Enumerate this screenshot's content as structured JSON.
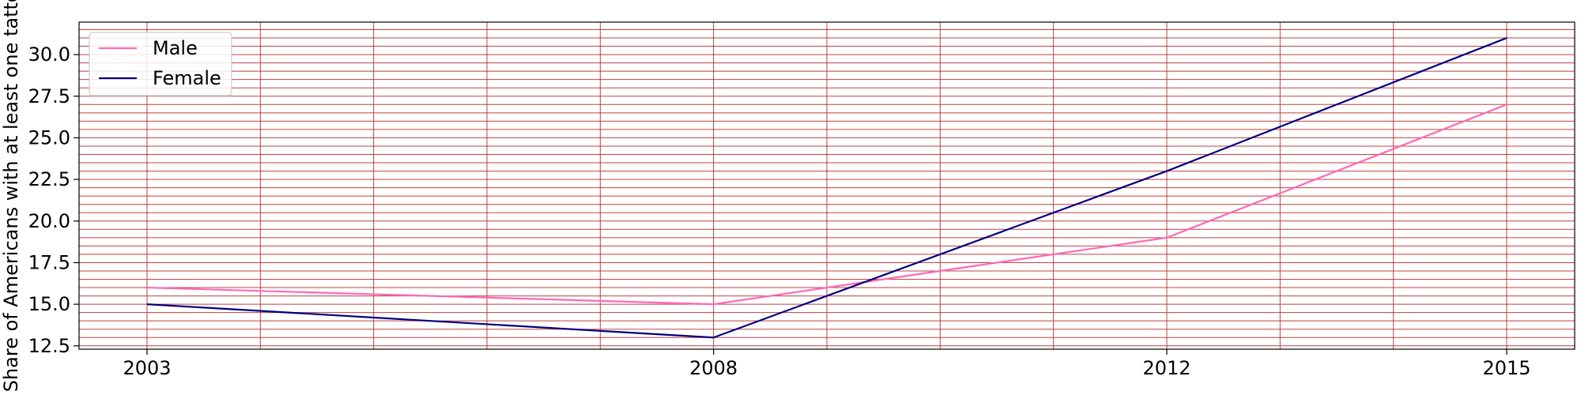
{
  "chart_data": {
    "type": "line",
    "title": "",
    "xlabel": "",
    "ylabel": "Share of Americans with at least one tattoo",
    "x": [
      2003,
      2008,
      2012,
      2015
    ],
    "xlim": [
      2002.4,
      2015.6
    ],
    "ylim": [
      12.3,
      31.95
    ],
    "yticks": [
      12.5,
      15.0,
      17.5,
      20.0,
      22.5,
      25.0,
      27.5,
      30.0
    ],
    "ytick_labels": [
      "12.5",
      "15.0",
      "17.5",
      "20.0",
      "22.5",
      "25.0",
      "27.5",
      "30.0"
    ],
    "xticks": [
      2003,
      2008,
      2012,
      2015
    ],
    "xtick_labels": [
      "2003",
      "2008",
      "2012",
      "2015"
    ],
    "x_minor_step": 1,
    "y_minor_step": 0.5,
    "grid": true,
    "grid_color": "#b22222",
    "legend_position": "upper-left",
    "series": [
      {
        "name": "Male",
        "values": [
          16,
          15,
          19,
          27
        ],
        "color": "#ff69b4"
      },
      {
        "name": "Female",
        "values": [
          15,
          13,
          23,
          31
        ],
        "color": "#000080"
      }
    ]
  }
}
